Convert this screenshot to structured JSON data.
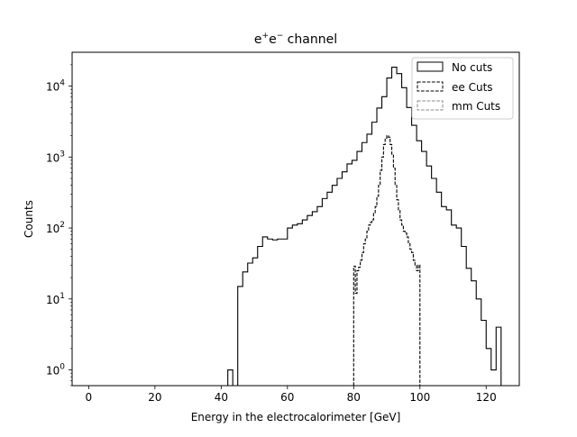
{
  "chart_data": {
    "type": "histogram-step",
    "title": "e$^{+}$e$^{-}$ channel",
    "title_parts": {
      "base1": "e",
      "sup1": "+",
      "base2": "e",
      "sup2": "−",
      "rest": " channel"
    },
    "xlabel": "Energy in the electrocalorimeter [GeV]",
    "ylabel": "Counts",
    "xlim": [
      -5,
      130
    ],
    "ylim": [
      0.6,
      30000
    ],
    "yscale": "log",
    "grid": false,
    "legend_position": "top-right",
    "x_ticks": [
      {
        "value": 0,
        "label": "0"
      },
      {
        "value": 20,
        "label": "20"
      },
      {
        "value": 40,
        "label": "40"
      },
      {
        "value": 60,
        "label": "60"
      },
      {
        "value": 80,
        "label": "80"
      },
      {
        "value": 100,
        "label": "100"
      },
      {
        "value": 120,
        "label": "120"
      }
    ],
    "y_ticks": [
      {
        "value": 1,
        "base": "10",
        "exp": "0"
      },
      {
        "value": 10,
        "base": "10",
        "exp": "1"
      },
      {
        "value": 100,
        "base": "10",
        "exp": "2"
      },
      {
        "value": 1000,
        "base": "10",
        "exp": "3"
      },
      {
        "value": 10000,
        "base": "10",
        "exp": "4"
      }
    ],
    "series": [
      {
        "name": "No cuts",
        "style": "solid",
        "color": "#000000",
        "bin_edges": [
          42,
          43.5,
          45,
          46.5,
          48,
          49.5,
          51,
          52.5,
          54,
          55.5,
          57,
          58.5,
          60,
          61.5,
          63,
          64.5,
          66,
          67.5,
          69,
          70.5,
          72,
          73.5,
          75,
          76.5,
          78,
          79.5,
          81,
          82.5,
          84,
          85.5,
          87,
          88.5,
          90,
          91.5,
          93,
          94.5,
          96,
          97.5,
          99,
          100.5,
          102,
          103.5,
          105,
          106.5,
          108,
          109.5,
          111,
          112.5,
          114,
          115.5,
          117,
          118.5,
          120,
          121.5,
          123,
          124.5
        ],
        "counts": [
          1,
          0,
          15,
          24,
          32,
          38,
          55,
          75,
          70,
          68,
          70,
          70,
          100,
          110,
          115,
          130,
          150,
          170,
          200,
          260,
          320,
          400,
          500,
          620,
          800,
          900,
          1200,
          1600,
          2100,
          3100,
          4900,
          7100,
          13000,
          18500,
          15000,
          9500,
          5000,
          2800,
          1700,
          1200,
          750,
          500,
          320,
          200,
          180,
          110,
          100,
          55,
          27,
          18,
          10,
          5,
          2,
          1,
          4
        ]
      },
      {
        "name": "ee Cuts",
        "style": "dashed",
        "color": "#000000",
        "bin_edges": [
          80,
          80.5,
          81,
          81.5,
          82,
          82.5,
          83,
          83.5,
          84,
          84.5,
          85,
          85.5,
          86,
          86.5,
          87,
          87.5,
          88,
          88.5,
          89,
          89.5,
          90,
          90.5,
          91,
          91.5,
          92,
          92.5,
          93,
          93.5,
          94,
          94.5,
          95,
          95.5,
          96,
          96.5,
          97,
          97.5,
          98,
          98.5,
          99,
          99.5,
          100
        ],
        "counts": [
          29,
          12,
          25,
          28,
          35,
          45,
          60,
          70,
          90,
          110,
          120,
          130,
          160,
          200,
          280,
          400,
          650,
          1000,
          1500,
          1850,
          2000,
          1900,
          1500,
          1100,
          700,
          400,
          250,
          180,
          130,
          110,
          90,
          85,
          75,
          60,
          50,
          45,
          35,
          30,
          25,
          30
        ]
      },
      {
        "name": "mm Cuts",
        "style": "dashed",
        "color": "#888888",
        "bin_edges": [],
        "counts": []
      }
    ]
  }
}
